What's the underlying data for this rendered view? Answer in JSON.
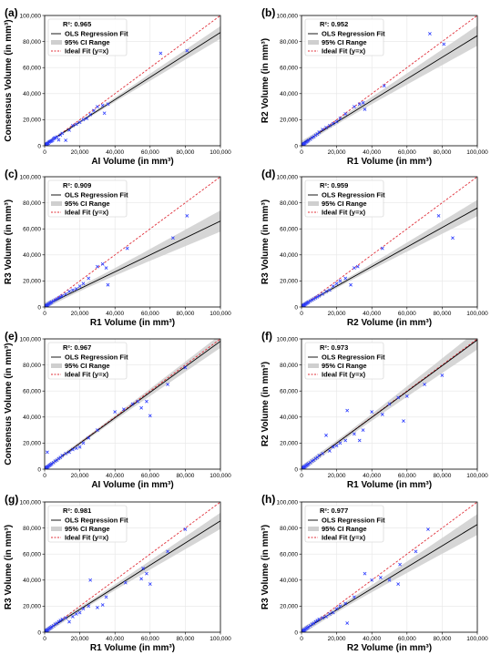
{
  "colors": {
    "fit_line": "#000000",
    "ci_band": "#cfcfcf",
    "ideal_line": "#e0303a",
    "points": "#2b3bff",
    "grid": "#e6e6e6"
  },
  "chart_data": [
    {
      "panel": "(a)",
      "type": "scatter",
      "xlabel": "AI Volume (in mm³)",
      "ylabel": "Consensus Volume (in mm³)",
      "xlim": [
        0,
        100000
      ],
      "ylim": [
        0,
        100000
      ],
      "r2_label": "R²: 0.965",
      "legend": [
        "OLS Regression Fit",
        "95% CI Range",
        "Ideal Fit (y=x)"
      ],
      "fit": {
        "slope": 0.86,
        "intercept": 1000
      },
      "x": [
        200,
        400,
        600,
        800,
        1000,
        1200,
        1500,
        1800,
        2200,
        2600,
        3000,
        3500,
        4000,
        4500,
        5000,
        5500,
        6000,
        7000,
        8000,
        9000,
        10000,
        12000,
        14000,
        16000,
        18000,
        20000,
        22000,
        24000,
        26000,
        28000,
        30000,
        33000,
        34000,
        36000,
        66000,
        81000
      ],
      "y": [
        300,
        500,
        700,
        1000,
        1100,
        1300,
        1600,
        1900,
        2100,
        2800,
        3200,
        3400,
        3800,
        4200,
        5200,
        5800,
        6200,
        6800,
        4500,
        8200,
        9500,
        4200,
        12000,
        15500,
        16500,
        18000,
        20000,
        21000,
        24000,
        27000,
        30000,
        31000,
        25000,
        32000,
        71000,
        73000
      ]
    },
    {
      "panel": "(b)",
      "type": "scatter",
      "xlabel": "R1 Volume (in mm³)",
      "ylabel": "R2 Volume (in mm³)",
      "xlim": [
        0,
        100000
      ],
      "ylim": [
        0,
        100000
      ],
      "r2_label": "R²: 0.952",
      "legend": [
        "OLS Regression Fit",
        "95% CI Range",
        "Ideal Fit (y=x)"
      ],
      "fit": {
        "slope": 0.83,
        "intercept": 1500
      },
      "x": [
        200,
        400,
        600,
        800,
        1000,
        1300,
        1600,
        2000,
        2500,
        3000,
        3500,
        4000,
        5000,
        6000,
        7000,
        8000,
        9000,
        10000,
        12000,
        14000,
        16000,
        18000,
        20000,
        22000,
        25000,
        30000,
        33000,
        35000,
        36000,
        47000,
        73000,
        81000
      ],
      "y": [
        300,
        500,
        700,
        900,
        1100,
        1400,
        1700,
        2100,
        2600,
        3100,
        3600,
        4200,
        5000,
        6200,
        6900,
        8100,
        9000,
        10500,
        12500,
        14000,
        15500,
        17000,
        18500,
        21000,
        24500,
        30000,
        32000,
        33000,
        28000,
        46000,
        86000,
        78000
      ]
    },
    {
      "panel": "(c)",
      "type": "scatter",
      "xlabel": "R1 Volume (in mm³)",
      "ylabel": "R3 Volume (in mm³)",
      "xlim": [
        0,
        100000
      ],
      "ylim": [
        0,
        100000
      ],
      "r2_label": "R²: 0.909",
      "legend": [
        "OLS Regression Fit",
        "95% CI Range",
        "Ideal Fit (y=x)"
      ],
      "fit": {
        "slope": 0.65,
        "intercept": 1000
      },
      "x": [
        200,
        400,
        600,
        800,
        1000,
        1300,
        1600,
        2000,
        2500,
        3000,
        3500,
        4000,
        5000,
        6000,
        7000,
        8000,
        9000,
        10000,
        12000,
        14000,
        16000,
        18000,
        20000,
        22000,
        25000,
        30000,
        33000,
        35000,
        36000,
        47000,
        73000,
        81000
      ],
      "y": [
        300,
        500,
        700,
        900,
        1100,
        1300,
        1600,
        2000,
        2400,
        2900,
        3300,
        3800,
        4600,
        5400,
        6200,
        7000,
        7800,
        8600,
        10000,
        12000,
        13000,
        14000,
        16000,
        18000,
        22000,
        31000,
        33000,
        30000,
        17000,
        45000,
        53000,
        70000
      ]
    },
    {
      "panel": "(d)",
      "type": "scatter",
      "xlabel": "R2 Volume (in mm³)",
      "ylabel": "R3 Volume (in mm³)",
      "xlim": [
        0,
        100000
      ],
      "ylim": [
        0,
        100000
      ],
      "r2_label": "R²: 0.959",
      "legend": [
        "OLS Regression Fit",
        "95% CI Range",
        "Ideal Fit (y=x)"
      ],
      "fit": {
        "slope": 0.75,
        "intercept": 1000
      },
      "x": [
        200,
        400,
        600,
        800,
        1000,
        1300,
        1600,
        2000,
        2500,
        3000,
        3500,
        4000,
        5000,
        6000,
        7000,
        8000,
        9000,
        10000,
        12000,
        14000,
        16000,
        18000,
        20000,
        22000,
        25000,
        28000,
        30000,
        32000,
        46000,
        78000,
        86000
      ],
      "y": [
        300,
        500,
        700,
        900,
        1100,
        1300,
        1600,
        2000,
        2400,
        2900,
        3300,
        3800,
        4600,
        5400,
        6200,
        7000,
        7800,
        8600,
        10000,
        12000,
        13000,
        16000,
        18000,
        20000,
        22000,
        17000,
        30000,
        31000,
        45000,
        70000,
        53000
      ]
    },
    {
      "panel": "(e)",
      "type": "scatter",
      "xlabel": "AI Volume (in mm³)",
      "ylabel": "Consensus Volume (in mm³)",
      "xlim": [
        0,
        100000
      ],
      "ylim": [
        0,
        100000
      ],
      "r2_label": "R²: 0.967",
      "legend": [
        "OLS Regression Fit",
        "95% CI Range",
        "Ideal Fit (y=x)"
      ],
      "fit": {
        "slope": 0.98,
        "intercept": 200
      },
      "x": [
        200,
        400,
        600,
        800,
        1000,
        1300,
        1600,
        2000,
        2500,
        3000,
        3500,
        4000,
        5000,
        6000,
        7000,
        8000,
        9000,
        10000,
        12000,
        14000,
        16000,
        18000,
        20000,
        22000,
        25000,
        30000,
        40000,
        45000,
        50000,
        53000,
        55000,
        58000,
        60000,
        70000,
        80000,
        1500
      ],
      "y": [
        300,
        500,
        700,
        900,
        1100,
        1400,
        1700,
        2100,
        2600,
        3100,
        3600,
        4200,
        5000,
        6200,
        6900,
        8100,
        9000,
        10500,
        12000,
        13000,
        15000,
        16000,
        17000,
        20000,
        24000,
        30000,
        44000,
        46000,
        50000,
        52000,
        47000,
        52000,
        41000,
        65000,
        78000,
        13000
      ]
    },
    {
      "panel": "(f)",
      "type": "scatter",
      "xlabel": "R1 Volume (in mm³)",
      "ylabel": "R2 Volume (in mm³)",
      "xlim": [
        0,
        100000
      ],
      "ylim": [
        0,
        100000
      ],
      "r2_label": "R²: 0.973",
      "legend": [
        "OLS Regression Fit",
        "95% CI Range",
        "Ideal Fit (y=x)"
      ],
      "fit": {
        "slope": 0.99,
        "intercept": 200
      },
      "x": [
        200,
        400,
        600,
        800,
        1000,
        1300,
        1600,
        2000,
        2500,
        3000,
        3500,
        4000,
        5000,
        6000,
        7000,
        8000,
        9000,
        10000,
        12000,
        14000,
        16000,
        18000,
        20000,
        22000,
        25000,
        26000,
        30000,
        33000,
        35000,
        40000,
        46000,
        50000,
        55000,
        58000,
        60000,
        70000,
        80000
      ],
      "y": [
        300,
        500,
        700,
        900,
        1100,
        1400,
        1700,
        2100,
        2600,
        3100,
        3600,
        4200,
        5000,
        6200,
        6900,
        8100,
        9000,
        10500,
        12000,
        26000,
        14000,
        17000,
        18000,
        20000,
        22000,
        45000,
        27000,
        22000,
        30000,
        44000,
        42000,
        50000,
        55000,
        37000,
        56000,
        65000,
        72000
      ]
    },
    {
      "panel": "(g)",
      "type": "scatter",
      "xlabel": "R1 Volume (in mm³)",
      "ylabel": "R3 Volume (in mm³)",
      "xlim": [
        0,
        100000
      ],
      "ylim": [
        0,
        100000
      ],
      "r2_label": "R²: 0.981",
      "legend": [
        "OLS Regression Fit",
        "95% CI Range",
        "Ideal Fit (y=x)"
      ],
      "fit": {
        "slope": 0.85,
        "intercept": 500
      },
      "x": [
        200,
        400,
        600,
        800,
        1000,
        1300,
        1600,
        2000,
        2500,
        3000,
        3500,
        4000,
        5000,
        6000,
        7000,
        8000,
        9000,
        10000,
        12000,
        14000,
        16000,
        18000,
        20000,
        22000,
        25000,
        26000,
        30000,
        33000,
        35000,
        46000,
        55000,
        56000,
        58000,
        60000,
        70000,
        80000
      ],
      "y": [
        300,
        500,
        700,
        900,
        1100,
        1400,
        1700,
        2100,
        2600,
        3100,
        3600,
        4200,
        5000,
        6200,
        6900,
        8100,
        9000,
        10000,
        11000,
        8000,
        12000,
        14000,
        15000,
        18000,
        20000,
        40000,
        19000,
        21000,
        27000,
        38000,
        41000,
        49000,
        45000,
        37000,
        62000,
        79000
      ]
    },
    {
      "panel": "(h)",
      "type": "scatter",
      "xlabel": "R2 Volume (in mm³)",
      "ylabel": "R3 Volume (in mm³)",
      "xlim": [
        0,
        100000
      ],
      "ylim": [
        0,
        100000
      ],
      "r2_label": "R²: 0.977",
      "legend": [
        "OLS Regression Fit",
        "95% CI Range",
        "Ideal Fit (y=x)"
      ],
      "fit": {
        "slope": 0.82,
        "intercept": 700
      },
      "x": [
        200,
        400,
        600,
        800,
        1000,
        1300,
        1600,
        2000,
        2500,
        3000,
        3500,
        4000,
        5000,
        6000,
        7000,
        8000,
        9000,
        10000,
        12000,
        14000,
        16000,
        18000,
        20000,
        22000,
        25000,
        26000,
        30000,
        36000,
        40000,
        45000,
        50000,
        55000,
        56000,
        65000,
        72000
      ],
      "y": [
        300,
        500,
        700,
        900,
        1100,
        1400,
        1700,
        2100,
        2600,
        3100,
        3600,
        4200,
        5000,
        6200,
        6900,
        8100,
        9000,
        10000,
        11000,
        12000,
        14000,
        15000,
        18000,
        20000,
        22000,
        7000,
        27000,
        45000,
        40000,
        42000,
        40000,
        37000,
        52000,
        62000,
        79000
      ]
    }
  ]
}
